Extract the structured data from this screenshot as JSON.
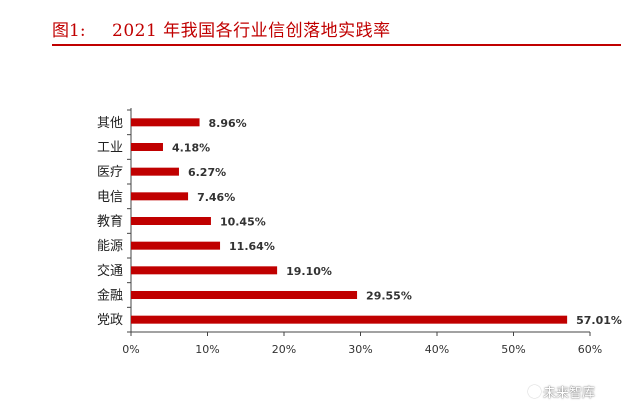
{
  "header": {
    "figure_label": "图1:",
    "figure_title": "2021 年我国各行业信创落地实践率"
  },
  "chart_data": {
    "type": "bar",
    "orientation": "horizontal",
    "categories": [
      "其他",
      "工业",
      "医疗",
      "电信",
      "教育",
      "能源",
      "交通",
      "金融",
      "党政"
    ],
    "values": [
      8.96,
      4.18,
      6.27,
      7.46,
      10.45,
      11.64,
      19.1,
      29.55,
      57.01
    ],
    "value_labels": [
      "8.96%",
      "4.18%",
      "6.27%",
      "7.46%",
      "10.45%",
      "11.64%",
      "19.10%",
      "29.55%",
      "57.01%"
    ],
    "xlim": [
      0,
      60
    ],
    "xticks": [
      0,
      10,
      20,
      30,
      40,
      50,
      60
    ],
    "xtick_labels": [
      "0%",
      "10%",
      "20%",
      "30%",
      "40%",
      "50%",
      "60%"
    ],
    "grid": false,
    "bar_color": "#c00000"
  },
  "watermark": {
    "text": "未来智库"
  }
}
